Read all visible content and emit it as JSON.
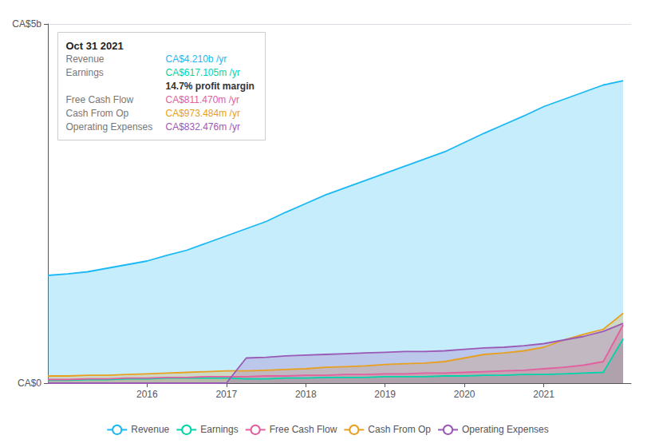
{
  "chart_data": {
    "type": "area",
    "x": [
      2014.75,
      2015.0,
      2015.25,
      2015.5,
      2015.75,
      2016.0,
      2016.25,
      2016.5,
      2016.75,
      2017.0,
      2017.25,
      2017.5,
      2017.75,
      2018.0,
      2018.25,
      2018.5,
      2018.75,
      2019.0,
      2019.25,
      2019.5,
      2019.75,
      2020.0,
      2020.25,
      2020.5,
      2020.75,
      2021.0,
      2021.25,
      2021.5,
      2021.75,
      2022.0
    ],
    "series": [
      {
        "name": "Revenue",
        "color": "#1ab8f5",
        "values": [
          1.5,
          1.52,
          1.55,
          1.6,
          1.65,
          1.7,
          1.78,
          1.85,
          1.95,
          2.05,
          2.15,
          2.25,
          2.38,
          2.5,
          2.62,
          2.72,
          2.82,
          2.92,
          3.02,
          3.12,
          3.22,
          3.35,
          3.48,
          3.6,
          3.72,
          3.85,
          3.95,
          4.05,
          4.15,
          4.21
        ]
      },
      {
        "name": "Earnings",
        "color": "#00d4aa",
        "values": [
          0.04,
          0.04,
          0.05,
          0.05,
          0.06,
          0.06,
          0.07,
          0.07,
          0.07,
          0.07,
          0.06,
          0.06,
          0.07,
          0.07,
          0.08,
          0.08,
          0.08,
          0.09,
          0.09,
          0.09,
          0.1,
          0.1,
          0.11,
          0.11,
          0.12,
          0.12,
          0.13,
          0.14,
          0.15,
          0.617
        ]
      },
      {
        "name": "Free Cash Flow",
        "color": "#e060a0",
        "values": [
          0.05,
          0.05,
          0.06,
          0.06,
          0.07,
          0.07,
          0.08,
          0.08,
          0.09,
          0.09,
          0.09,
          0.1,
          0.1,
          0.11,
          0.11,
          0.12,
          0.12,
          0.13,
          0.13,
          0.14,
          0.14,
          0.15,
          0.16,
          0.17,
          0.18,
          0.2,
          0.22,
          0.25,
          0.3,
          0.811
        ]
      },
      {
        "name": "Cash From Op",
        "color": "#e8a020",
        "values": [
          0.1,
          0.1,
          0.11,
          0.11,
          0.12,
          0.13,
          0.14,
          0.15,
          0.16,
          0.17,
          0.17,
          0.18,
          0.19,
          0.2,
          0.22,
          0.23,
          0.24,
          0.26,
          0.27,
          0.28,
          0.3,
          0.35,
          0.4,
          0.42,
          0.45,
          0.5,
          0.6,
          0.68,
          0.75,
          0.973
        ]
      },
      {
        "name": "Operating Expenses",
        "color": "#9b59b6",
        "values": [
          0.0,
          0.0,
          0.0,
          0.0,
          0.0,
          0.0,
          0.0,
          0.0,
          0.0,
          0.0,
          0.35,
          0.36,
          0.38,
          0.39,
          0.4,
          0.41,
          0.42,
          0.43,
          0.44,
          0.44,
          0.45,
          0.47,
          0.49,
          0.5,
          0.52,
          0.55,
          0.6,
          0.65,
          0.72,
          0.832
        ]
      }
    ],
    "xlim": [
      2014.75,
      2022.1
    ],
    "xticks": [
      2016,
      2017,
      2018,
      2019,
      2020,
      2021
    ],
    "ylim": [
      0,
      5.0
    ],
    "yticks": [
      {
        "value": 0,
        "label": "CA$0"
      },
      {
        "value": 5.0,
        "label": "CA$5b"
      }
    ],
    "grid": true,
    "legend": "bottom",
    "annotations": [
      {
        "text": "Oct 31 2021"
      },
      {
        "label": "Revenue",
        "text": "CA$4.210b /yr",
        "color": "#1ab8f5"
      },
      {
        "label": "Earnings",
        "text": "CA$617.105m /yr",
        "color": "#00d4aa"
      },
      {
        "text": "14.7% profit margin"
      },
      {
        "label": "Free Cash Flow",
        "text": "CA$811.470m /yr",
        "color": "#e060a0"
      },
      {
        "label": "Cash From Op",
        "text": "CA$973.484m /yr",
        "color": "#e8a020"
      },
      {
        "label": "Operating Expenses",
        "text": "CA$832.476m /yr",
        "color": "#9b59b6"
      }
    ]
  }
}
